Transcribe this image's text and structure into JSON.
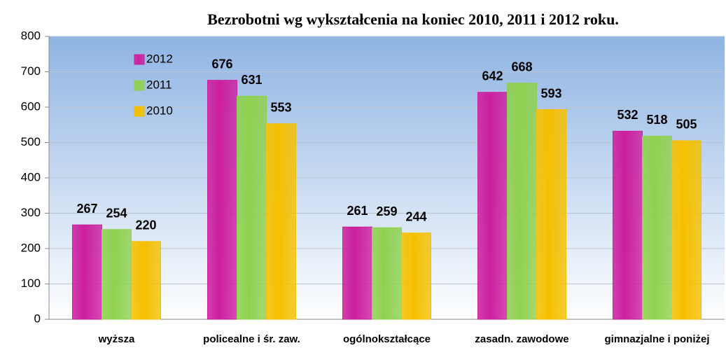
{
  "chart_data": {
    "type": "bar",
    "title": "Bezrobotni wg wykształcenia na koniec 2010, 2011 i 2012 roku.",
    "categories": [
      "wyższa",
      "policealne i śr. zaw.",
      "ogólnokształcące",
      "zasadn. zawodowe",
      "gimnazjalne i poniżej"
    ],
    "series": [
      {
        "name": "2012",
        "color": "#cc1f9e",
        "values": [
          267,
          676,
          261,
          642,
          532
        ]
      },
      {
        "name": "2011",
        "color": "#8fd14f",
        "values": [
          254,
          631,
          259,
          668,
          518
        ]
      },
      {
        "name": "2010",
        "color": "#f5c000",
        "values": [
          220,
          553,
          244,
          593,
          505
        ]
      }
    ],
    "ylim": [
      0,
      800
    ],
    "yticks": [
      0,
      100,
      200,
      300,
      400,
      500,
      600,
      700,
      800
    ],
    "grid": true,
    "legend": "top-left"
  }
}
